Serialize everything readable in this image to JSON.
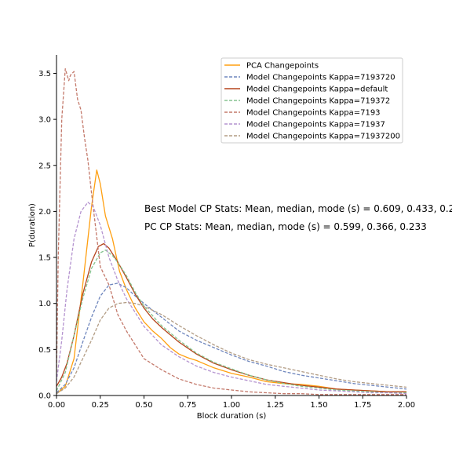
{
  "chart_data": {
    "type": "line",
    "title": "",
    "xlabel": "Block duration (s)",
    "ylabel": "P(duration)",
    "xlim": [
      0,
      2
    ],
    "ylim": [
      0,
      3.7
    ],
    "x_ticks": [
      "0.00",
      "0.25",
      "0.50",
      "0.75",
      "1.00",
      "1.25",
      "1.50",
      "1.75",
      "2.00"
    ],
    "y_ticks": [
      "0.0",
      "0.5",
      "1.0",
      "1.5",
      "2.0",
      "2.5",
      "3.0",
      "3.5"
    ],
    "grid": false,
    "legend_position": "top-right",
    "annotations": [
      "Best Model CP Stats: Mean, median, mode (s) = 0.609, 0.433, 0.2",
      "PC CP Stats: Mean, median, mode (s) = 0.599, 0.366, 0.233"
    ],
    "series": [
      {
        "name": "PCA Changepoints",
        "color": "#ff9f10",
        "style": "solid",
        "x": [
          0,
          0.05,
          0.1,
          0.15,
          0.2,
          0.23,
          0.25,
          0.28,
          0.32,
          0.36,
          0.4,
          0.45,
          0.5,
          0.55,
          0.6,
          0.65,
          0.7,
          0.75,
          0.8,
          0.9,
          1.0,
          1.1,
          1.2,
          1.3,
          1.4,
          1.5,
          1.6,
          1.7,
          1.8,
          1.9,
          2.0
        ],
        "y": [
          0.02,
          0.1,
          0.4,
          1.2,
          2.05,
          2.45,
          2.3,
          1.95,
          1.7,
          1.35,
          1.15,
          0.95,
          0.8,
          0.7,
          0.62,
          0.52,
          0.45,
          0.41,
          0.38,
          0.3,
          0.24,
          0.2,
          0.15,
          0.13,
          0.12,
          0.1,
          0.07,
          0.06,
          0.05,
          0.04,
          0.04
        ]
      },
      {
        "name": "Model Changepoints Kappa=7193720",
        "color": "#6f86bd",
        "style": "dashed",
        "x": [
          0,
          0.05,
          0.1,
          0.15,
          0.2,
          0.25,
          0.3,
          0.35,
          0.4,
          0.45,
          0.5,
          0.6,
          0.7,
          0.8,
          0.9,
          1.0,
          1.1,
          1.2,
          1.3,
          1.4,
          1.5,
          1.6,
          1.7,
          1.8,
          1.9,
          2.0
        ],
        "y": [
          0.03,
          0.12,
          0.3,
          0.58,
          0.85,
          1.08,
          1.2,
          1.22,
          1.17,
          1.08,
          1.0,
          0.85,
          0.7,
          0.6,
          0.52,
          0.44,
          0.37,
          0.32,
          0.26,
          0.22,
          0.19,
          0.16,
          0.13,
          0.11,
          0.09,
          0.07
        ]
      },
      {
        "name": "Model Changepoints Kappa=default",
        "color": "#b5441c",
        "style": "solid",
        "x": [
          0,
          0.03,
          0.06,
          0.1,
          0.15,
          0.2,
          0.24,
          0.27,
          0.3,
          0.35,
          0.4,
          0.45,
          0.5,
          0.55,
          0.6,
          0.7,
          0.8,
          0.9,
          1.0,
          1.1,
          1.2,
          1.3,
          1.4,
          1.5,
          1.6,
          1.7,
          1.8,
          1.9,
          2.0
        ],
        "y": [
          0.1,
          0.2,
          0.35,
          0.65,
          1.1,
          1.45,
          1.62,
          1.65,
          1.6,
          1.45,
          1.28,
          1.1,
          0.95,
          0.83,
          0.74,
          0.58,
          0.45,
          0.35,
          0.28,
          0.22,
          0.17,
          0.14,
          0.11,
          0.09,
          0.07,
          0.06,
          0.05,
          0.04,
          0.04
        ]
      },
      {
        "name": "Model Changepoints Kappa=719372",
        "color": "#86c490",
        "style": "dashed",
        "x": [
          0,
          0.05,
          0.1,
          0.15,
          0.2,
          0.25,
          0.28,
          0.32,
          0.36,
          0.4,
          0.45,
          0.5,
          0.6,
          0.7,
          0.8,
          0.9,
          1.0,
          1.1,
          1.2,
          1.3,
          1.4,
          1.5,
          1.6,
          1.7,
          1.8,
          1.9,
          2.0
        ],
        "y": [
          0.05,
          0.25,
          0.65,
          1.05,
          1.38,
          1.55,
          1.58,
          1.52,
          1.42,
          1.3,
          1.12,
          0.97,
          0.76,
          0.6,
          0.46,
          0.36,
          0.29,
          0.22,
          0.17,
          0.13,
          0.1,
          0.08,
          0.06,
          0.05,
          0.04,
          0.03,
          0.03
        ]
      },
      {
        "name": "Model Changepoints Kappa=7193",
        "color": "#c47a6c",
        "style": "dashed",
        "x": [
          0,
          0.01,
          0.03,
          0.05,
          0.07,
          0.08,
          0.1,
          0.12,
          0.14,
          0.16,
          0.18,
          0.2,
          0.25,
          0.3,
          0.35,
          0.4,
          0.45,
          0.5,
          0.6,
          0.7,
          0.8,
          0.9,
          1.0,
          1.1,
          1.2,
          1.3,
          1.4,
          1.5,
          1.6,
          1.7,
          1.8,
          1.9,
          2.0
        ],
        "y": [
          0.2,
          1.5,
          3.0,
          3.55,
          3.42,
          3.48,
          3.52,
          3.22,
          3.1,
          2.8,
          2.55,
          2.2,
          1.4,
          1.2,
          0.88,
          0.7,
          0.55,
          0.4,
          0.28,
          0.18,
          0.12,
          0.08,
          0.06,
          0.04,
          0.03,
          0.02,
          0.02,
          0.01,
          0.01,
          0.01,
          0.01,
          0.01,
          0.01
        ]
      },
      {
        "name": "Model Changepoints Kappa=71937",
        "color": "#b493cf",
        "style": "dashed",
        "x": [
          0,
          0.03,
          0.06,
          0.1,
          0.14,
          0.18,
          0.21,
          0.25,
          0.3,
          0.35,
          0.4,
          0.45,
          0.5,
          0.6,
          0.7,
          0.8,
          0.9,
          1.0,
          1.1,
          1.2,
          1.3,
          1.4,
          1.5,
          1.6,
          1.7,
          1.8,
          1.9,
          2.0
        ],
        "y": [
          0.15,
          0.6,
          1.15,
          1.7,
          2.0,
          2.1,
          2.05,
          1.85,
          1.5,
          1.25,
          1.05,
          0.9,
          0.75,
          0.55,
          0.42,
          0.32,
          0.25,
          0.2,
          0.16,
          0.12,
          0.1,
          0.08,
          0.06,
          0.05,
          0.04,
          0.03,
          0.03,
          0.02
        ]
      },
      {
        "name": "Model Changepoints Kappa=71937200",
        "color": "#b29c84",
        "style": "dashed",
        "x": [
          0,
          0.05,
          0.1,
          0.15,
          0.2,
          0.25,
          0.3,
          0.35,
          0.4,
          0.45,
          0.5,
          0.6,
          0.7,
          0.8,
          0.9,
          1.0,
          1.1,
          1.2,
          1.3,
          1.4,
          1.5,
          1.6,
          1.7,
          1.8,
          1.9,
          2.0
        ],
        "y": [
          0.02,
          0.08,
          0.2,
          0.4,
          0.6,
          0.82,
          0.95,
          1.0,
          1.01,
          1.0,
          0.97,
          0.88,
          0.76,
          0.65,
          0.55,
          0.46,
          0.39,
          0.34,
          0.3,
          0.26,
          0.22,
          0.18,
          0.15,
          0.13,
          0.11,
          0.09
        ]
      }
    ]
  }
}
